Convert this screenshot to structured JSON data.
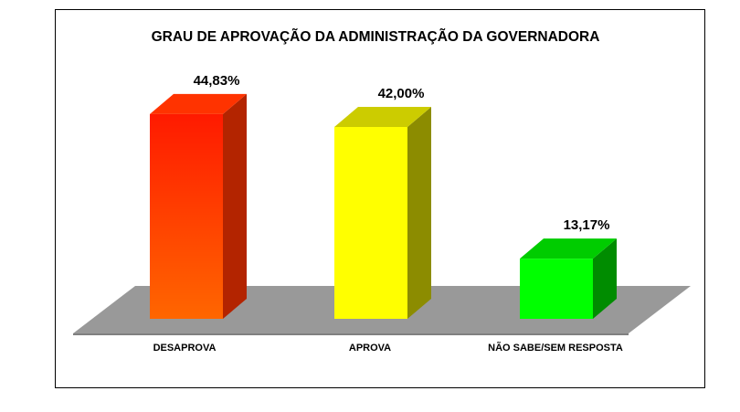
{
  "chart_data": {
    "type": "bar",
    "title": "GRAU DE APROVAÇÃO DA ADMINISTRAÇÃO DA GOVERNADORA",
    "categories": [
      "DESAPROVA",
      "APROVA",
      "NÃO SABE/SEM RESPOSTA"
    ],
    "values": [
      44.83,
      42.0,
      13.17
    ],
    "value_labels": [
      "44,83%",
      "42,00%",
      "13,17%"
    ],
    "unit": "%",
    "ylim": [
      0,
      50
    ],
    "grid": false,
    "legend": "none",
    "style": "3d",
    "floor_color": "#999999",
    "bar_colors": [
      {
        "front_top": "#ff1a00",
        "front_bottom": "#ff6600",
        "side": "#b32400",
        "top": "#ff3300"
      },
      {
        "front_top": "#ffff00",
        "front_bottom": "#ffff00",
        "side": "#8c8c00",
        "top": "#cccc00"
      },
      {
        "front_top": "#00ff00",
        "front_bottom": "#00ff00",
        "side": "#008c00",
        "top": "#00cc00"
      }
    ]
  }
}
